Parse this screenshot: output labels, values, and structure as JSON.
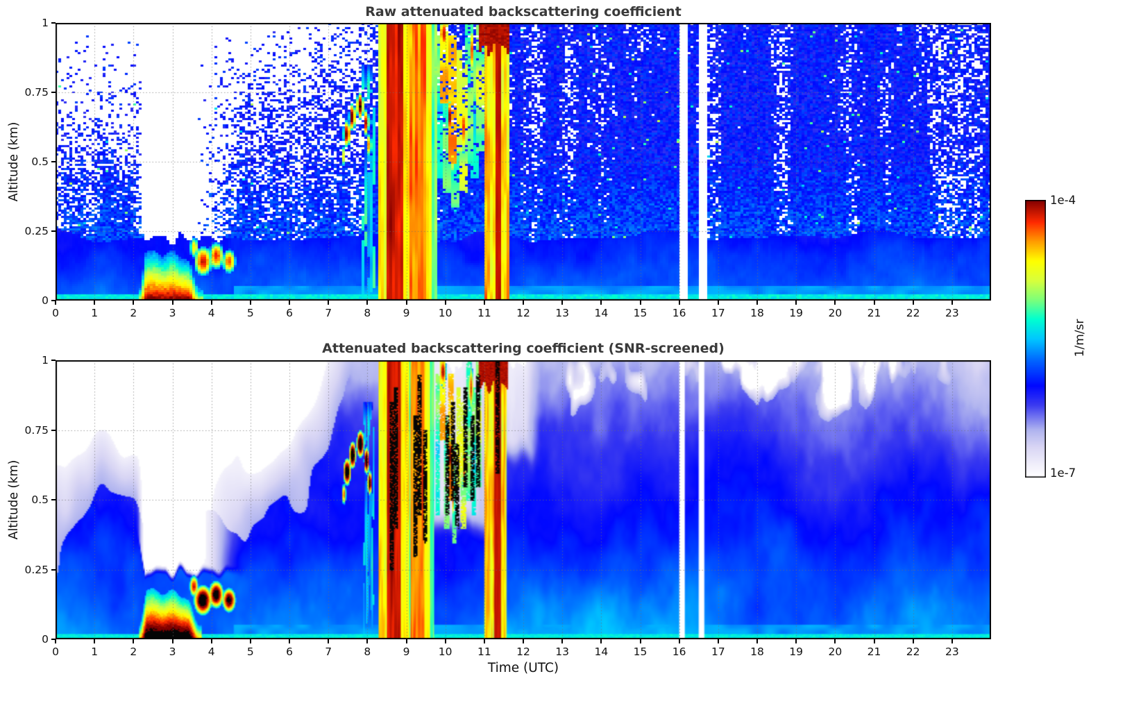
{
  "chart_data": {
    "type": "heatmap",
    "value_scale": "log",
    "value_min_label": "1e-7",
    "value_max_label": "1e-4",
    "x": {
      "label": "Time (UTC)",
      "range": [
        0,
        24
      ],
      "ticks": [
        "0",
        "1",
        "2",
        "3",
        "4",
        "5",
        "6",
        "7",
        "8",
        "9",
        "10",
        "11",
        "12",
        "13",
        "14",
        "15",
        "16",
        "17",
        "18",
        "19",
        "20",
        "21",
        "22",
        "23"
      ]
    },
    "y": {
      "label": "Altitude (km)",
      "range": [
        0,
        1
      ],
      "ticks": [
        "0",
        "0.25",
        "0.5",
        "0.75",
        "1"
      ],
      "values": [
        0,
        0.25,
        0.5,
        0.75,
        1
      ]
    },
    "colorbar": {
      "max_label": "1e-4",
      "min_label": "1e-7",
      "unit": "1/m/sr"
    },
    "colormap": [
      [
        0,
        "#ffffff"
      ],
      [
        0.05,
        "#efedfa"
      ],
      [
        0.11,
        "#d8d5f4"
      ],
      [
        0.17,
        "#b0b4ef"
      ],
      [
        0.26,
        "#3b3bf0"
      ],
      [
        0.33,
        "#0008ff"
      ],
      [
        0.42,
        "#0064ff"
      ],
      [
        0.5,
        "#00c8ff"
      ],
      [
        0.57,
        "#00ffd0"
      ],
      [
        0.64,
        "#7dff7a"
      ],
      [
        0.71,
        "#d8ff3c"
      ],
      [
        0.78,
        "#ffff00"
      ],
      [
        0.85,
        "#ff9d00"
      ],
      [
        0.92,
        "#ff2a00"
      ],
      [
        1,
        "#800000"
      ]
    ],
    "panels": [
      {
        "title": "Raw attenuated backscattering coefficient",
        "style": "speckled",
        "grid": [
          336,
          134
        ],
        "ops": [
          {
            "type": "speckle_base"
          },
          {
            "type": "clear_hole",
            "t0": 2.05,
            "t_hard": 3.55,
            "t_fade": 4.9,
            "z0": 0.2
          },
          {
            "type": "fog_cloud",
            "t0": 2.15,
            "t1": 3.7,
            "amp": 0.97
          },
          {
            "type": "blobs",
            "list": [
              [
                3.78,
                0.14,
                0.24,
                0.055,
                0.9
              ],
              [
                4.12,
                0.16,
                0.2,
                0.05,
                0.87
              ],
              [
                4.45,
                0.14,
                0.18,
                0.045,
                0.84
              ],
              [
                3.55,
                0.19,
                0.12,
                0.04,
                0.75
              ]
            ]
          },
          {
            "type": "blobs",
            "list": [
              [
                7.48,
                0.6,
                0.1,
                0.05,
                0.95
              ],
              [
                7.62,
                0.66,
                0.09,
                0.05,
                0.97
              ],
              [
                7.82,
                0.7,
                0.1,
                0.05,
                0.98
              ],
              [
                7.98,
                0.64,
                0.07,
                0.05,
                0.93
              ],
              [
                8.06,
                0.56,
                0.06,
                0.045,
                0.88
              ],
              [
                7.4,
                0.52,
                0.06,
                0.04,
                0.7
              ]
            ]
          },
          {
            "type": "rain_bands",
            "bands": [
              [
                7.9,
                8.12,
                0.5,
                0.2,
                0.85,
                1
              ],
              [
                8.3,
                8.52,
                0.78,
                0.12,
                1,
                0
              ],
              [
                8.52,
                8.8,
                0.95,
                0.06,
                1,
                0
              ],
              [
                8.8,
                9.02,
                0.78,
                0.1,
                1,
                0
              ],
              [
                9.02,
                9.14,
                0.62,
                0.1,
                1,
                0
              ],
              [
                9.14,
                9.4,
                0.86,
                0.1,
                1,
                0
              ],
              [
                9.4,
                9.56,
                0.78,
                0.08,
                1,
                0
              ],
              [
                9.56,
                9.66,
                0.62,
                0.12,
                1,
                0
              ]
            ]
          },
          {
            "type": "streaks",
            "list": [
              [
                9.78,
                0.45,
                0.95,
                0.6
              ],
              [
                9.9,
                0.72,
                1,
                0.8
              ],
              [
                10.02,
                0.4,
                0.8,
                0.62
              ],
              [
                10.12,
                0.5,
                0.95,
                0.78
              ],
              [
                10.22,
                0.35,
                0.7,
                0.6
              ],
              [
                10.32,
                0.55,
                0.9,
                0.72
              ],
              [
                10.45,
                0.4,
                0.85,
                0.68
              ],
              [
                10.58,
                0.5,
                1,
                0.64
              ],
              [
                10.72,
                0.45,
                0.9,
                0.6
              ],
              [
                10.85,
                0.55,
                1,
                0.68
              ]
            ]
          },
          {
            "type": "blobs",
            "list": [
              [
                10.12,
                0.66,
                0.05,
                0.07,
                0.95
              ],
              [
                10.2,
                0.52,
                0.04,
                0.09,
                0.88
              ],
              [
                10.48,
                0.62,
                0.05,
                0.1,
                0.9
              ],
              [
                9.94,
                0.96,
                0.09,
                0.06,
                0.93
              ],
              [
                10.66,
                0.9,
                0.06,
                0.09,
                0.88
              ]
            ]
          },
          {
            "type": "band11",
            "t0": 11.02,
            "t1": 11.52,
            "c0": 11.26,
            "c1": 11.44
          },
          {
            "type": "surface_line",
            "z": 0.015,
            "u": 0.55
          },
          {
            "type": "low_band",
            "t0": 4.6,
            "z": 0.05,
            "u": 0.46
          },
          {
            "type": "white_cols",
            "ts": [
              16.05,
              16.55
            ],
            "w": 0.06
          }
        ]
      },
      {
        "title": "Attenuated backscattering coefficient (SNR-screened)",
        "style": "smooth",
        "grid": [
          672,
          268
        ],
        "ops": [
          {
            "type": "smooth_base"
          },
          {
            "type": "clear_hole",
            "t0": 2.05,
            "t_hard": 3.55,
            "t_fade": 5.1,
            "z0": 0.2
          },
          {
            "type": "screen_region",
            "t0": 9.6,
            "t1": 12.5
          },
          {
            "type": "fog_cloud",
            "t0": 2.15,
            "t1": 3.7,
            "amp": 1.13
          },
          {
            "type": "blobs",
            "list": [
              [
                3.78,
                0.14,
                0.24,
                0.055,
                1.08
              ],
              [
                4.12,
                0.16,
                0.2,
                0.05,
                1.05
              ],
              [
                4.45,
                0.14,
                0.18,
                0.045,
                1.02
              ],
              [
                3.55,
                0.19,
                0.12,
                0.04,
                0.9
              ]
            ]
          },
          {
            "type": "blobs",
            "list": [
              [
                7.48,
                0.6,
                0.1,
                0.05,
                1.1
              ],
              [
                7.62,
                0.66,
                0.09,
                0.05,
                1.12
              ],
              [
                7.82,
                0.7,
                0.1,
                0.05,
                1.12
              ],
              [
                7.98,
                0.64,
                0.07,
                0.05,
                1.08
              ],
              [
                8.06,
                0.56,
                0.06,
                0.045,
                1.05
              ],
              [
                7.4,
                0.52,
                0.06,
                0.04,
                0.85
              ]
            ]
          },
          {
            "type": "rain_bands",
            "bands": [
              [
                7.9,
                8.12,
                0.5,
                0.2,
                0.85,
                1
              ],
              [
                8.3,
                8.52,
                0.78,
                0.12,
                1,
                0
              ],
              [
                8.52,
                8.8,
                0.95,
                0.06,
                1,
                0
              ],
              [
                8.8,
                9.02,
                0.78,
                0.1,
                1,
                0
              ],
              [
                9.02,
                9.14,
                0.62,
                0.1,
                1,
                0
              ],
              [
                9.14,
                9.4,
                0.86,
                0.1,
                1,
                0
              ],
              [
                9.4,
                9.56,
                0.78,
                0.08,
                1,
                0
              ],
              [
                9.56,
                9.66,
                0.62,
                0.12,
                1,
                0
              ]
            ]
          },
          {
            "type": "streaks",
            "list": [
              [
                9.78,
                0.45,
                0.95,
                0.6
              ],
              [
                9.9,
                0.72,
                1,
                0.8
              ],
              [
                10.02,
                0.4,
                0.8,
                0.62
              ],
              [
                10.12,
                0.5,
                0.95,
                0.78
              ],
              [
                10.22,
                0.35,
                0.7,
                0.6
              ],
              [
                10.32,
                0.55,
                0.9,
                0.72
              ],
              [
                10.45,
                0.4,
                0.85,
                0.68
              ],
              [
                10.58,
                0.5,
                1,
                0.64
              ],
              [
                10.72,
                0.45,
                0.9,
                0.6
              ],
              [
                10.85,
                0.55,
                1,
                0.68
              ]
            ]
          },
          {
            "type": "blobs",
            "list": [
              [
                10.12,
                0.66,
                0.05,
                0.07,
                0.95
              ],
              [
                10.2,
                0.52,
                0.04,
                0.09,
                0.88
              ],
              [
                10.48,
                0.62,
                0.05,
                0.1,
                0.9
              ],
              [
                9.94,
                0.96,
                0.09,
                0.06,
                0.93
              ],
              [
                10.66,
                0.9,
                0.06,
                0.09,
                0.88
              ]
            ]
          },
          {
            "type": "band11",
            "t0": 11.02,
            "t1": 11.52,
            "c0": 11.26,
            "c1": 11.44
          },
          {
            "type": "black_streaks",
            "list": [
              [
                8.62,
                0.25,
                0.85
              ],
              [
                8.72,
                0.4,
                0.9
              ],
              [
                9.2,
                0.3,
                0.8
              ],
              [
                9.32,
                0.45,
                0.95
              ],
              [
                9.47,
                0.35,
                0.75
              ],
              [
                10.05,
                0.45,
                0.8
              ],
              [
                10.18,
                0.5,
                0.85
              ],
              [
                10.3,
                0.4,
                0.7
              ],
              [
                10.5,
                0.55,
                0.9
              ],
              [
                10.68,
                0.5,
                0.8
              ],
              [
                10.82,
                0.55,
                0.95
              ],
              [
                11.32,
                0.6,
                1
              ]
            ]
          },
          {
            "type": "surface_line",
            "z": 0.015,
            "u": 0.55
          },
          {
            "type": "low_band",
            "t0": 4.6,
            "z": 0.05,
            "u": 0.46
          },
          {
            "type": "white_cols",
            "ts": [
              16.05,
              16.55
            ],
            "w": 0.06
          }
        ]
      }
    ]
  }
}
